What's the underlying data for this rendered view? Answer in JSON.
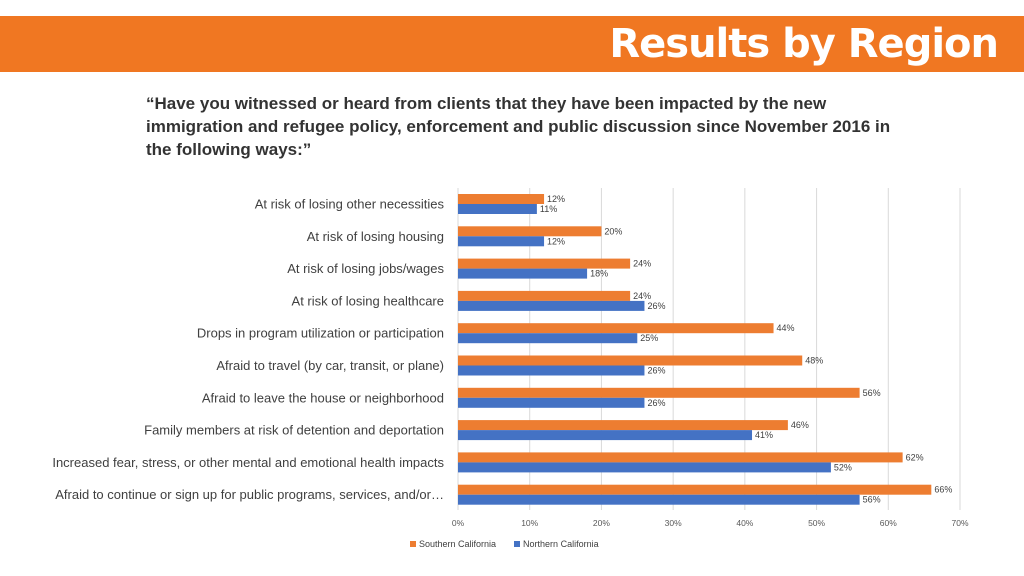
{
  "header": {
    "title": "Results by Region"
  },
  "question": "“Have you witnessed or heard from clients that they have been impacted by the new immigration and refugee policy, enforcement and public discussion since November 2016 in the following ways:”",
  "colors": {
    "accent": "#F07722",
    "southern": "#ED7D31",
    "northern": "#4472C4"
  },
  "chart_data": {
    "type": "bar",
    "orientation": "horizontal",
    "categories": [
      "At risk of losing other necessities",
      "At risk of losing housing",
      "At risk of losing jobs/wages",
      "At risk of losing healthcare",
      "Drops in program utilization or participation",
      "Afraid to travel (by car, transit, or plane)",
      "Afraid to leave the house or neighborhood",
      "Family members at risk of detention and deportation",
      "Increased fear, stress, or other mental and emotional health impacts",
      "Afraid to continue or sign up for public programs, services, and/or…"
    ],
    "series": [
      {
        "name": "Southern California",
        "color": "#ED7D31",
        "values": [
          12,
          20,
          24,
          24,
          44,
          48,
          56,
          46,
          62,
          66
        ]
      },
      {
        "name": "Northern California",
        "color": "#4472C4",
        "values": [
          11,
          12,
          18,
          26,
          25,
          26,
          26,
          41,
          52,
          56
        ]
      }
    ],
    "xlim": [
      0,
      70
    ],
    "xticks": [
      "0%",
      "10%",
      "20%",
      "30%",
      "40%",
      "50%",
      "60%",
      "70%"
    ],
    "value_suffix": "%",
    "grid": true,
    "legend_position": "bottom"
  }
}
